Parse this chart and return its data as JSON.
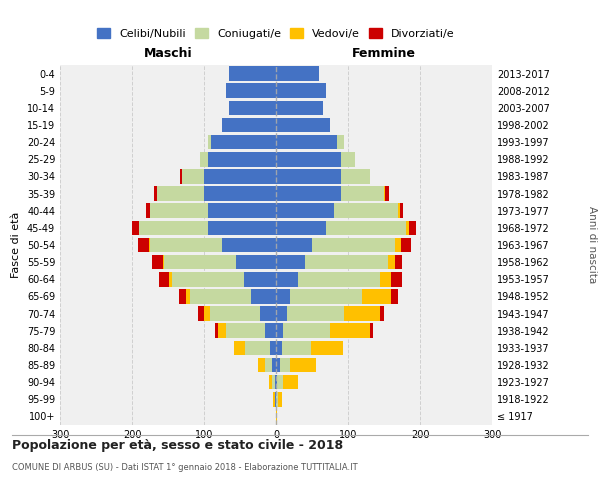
{
  "age_groups": [
    "100+",
    "95-99",
    "90-94",
    "85-89",
    "80-84",
    "75-79",
    "70-74",
    "65-69",
    "60-64",
    "55-59",
    "50-54",
    "45-49",
    "40-44",
    "35-39",
    "30-34",
    "25-29",
    "20-24",
    "15-19",
    "10-14",
    "5-9",
    "0-4"
  ],
  "birth_years": [
    "≤ 1917",
    "1918-1922",
    "1923-1927",
    "1928-1932",
    "1933-1937",
    "1938-1942",
    "1943-1947",
    "1948-1952",
    "1953-1957",
    "1958-1962",
    "1963-1967",
    "1968-1972",
    "1973-1977",
    "1978-1982",
    "1983-1987",
    "1988-1992",
    "1993-1997",
    "1998-2002",
    "2003-2007",
    "2008-2012",
    "2013-2017"
  ],
  "colors": {
    "celibe": "#4472c4",
    "coniugato": "#c5d9a0",
    "vedovo": "#ffc000",
    "divorziato": "#cc0000"
  },
  "maschi": {
    "celibe": [
      0,
      1,
      2,
      5,
      8,
      15,
      22,
      35,
      45,
      55,
      75,
      95,
      95,
      100,
      100,
      95,
      90,
      75,
      65,
      70,
      65
    ],
    "coniugato": [
      0,
      0,
      3,
      10,
      35,
      55,
      70,
      85,
      100,
      100,
      100,
      95,
      80,
      65,
      30,
      10,
      5,
      0,
      0,
      0,
      0
    ],
    "vedovo": [
      0,
      3,
      5,
      10,
      15,
      10,
      8,
      5,
      3,
      2,
      2,
      0,
      0,
      0,
      0,
      0,
      0,
      0,
      0,
      0,
      0
    ],
    "divorziato": [
      0,
      0,
      0,
      0,
      0,
      5,
      8,
      10,
      15,
      15,
      15,
      10,
      5,
      5,
      3,
      0,
      0,
      0,
      0,
      0,
      0
    ]
  },
  "femmine": {
    "celibe": [
      0,
      0,
      2,
      5,
      8,
      10,
      15,
      20,
      30,
      40,
      50,
      70,
      80,
      90,
      90,
      90,
      85,
      75,
      65,
      70,
      60
    ],
    "coniugato": [
      0,
      3,
      8,
      15,
      40,
      65,
      80,
      100,
      115,
      115,
      115,
      110,
      90,
      60,
      40,
      20,
      10,
      0,
      0,
      0,
      0
    ],
    "vedovo": [
      2,
      5,
      20,
      35,
      45,
      55,
      50,
      40,
      15,
      10,
      8,
      5,
      2,
      2,
      0,
      0,
      0,
      0,
      0,
      0,
      0
    ],
    "divorziato": [
      0,
      0,
      0,
      0,
      0,
      5,
      5,
      10,
      15,
      10,
      15,
      10,
      5,
      5,
      0,
      0,
      0,
      0,
      0,
      0,
      0
    ]
  },
  "xlim": 300,
  "title": "Popolazione per età, sesso e stato civile - 2018",
  "subtitle": "COMUNE DI ARBUS (SU) - Dati ISTAT 1° gennaio 2018 - Elaborazione TUTTITALIA.IT",
  "maschi_label": "Maschi",
  "femmine_label": "Femmine",
  "legend_labels": [
    "Celibi/Nubili",
    "Coniugati/e",
    "Vedovi/e",
    "Divorziati/e"
  ],
  "ylabel": "Fasce di età",
  "anni_label": "Anni di nascita",
  "background_color": "#f0f0f0",
  "grid_color": "#cccccc"
}
